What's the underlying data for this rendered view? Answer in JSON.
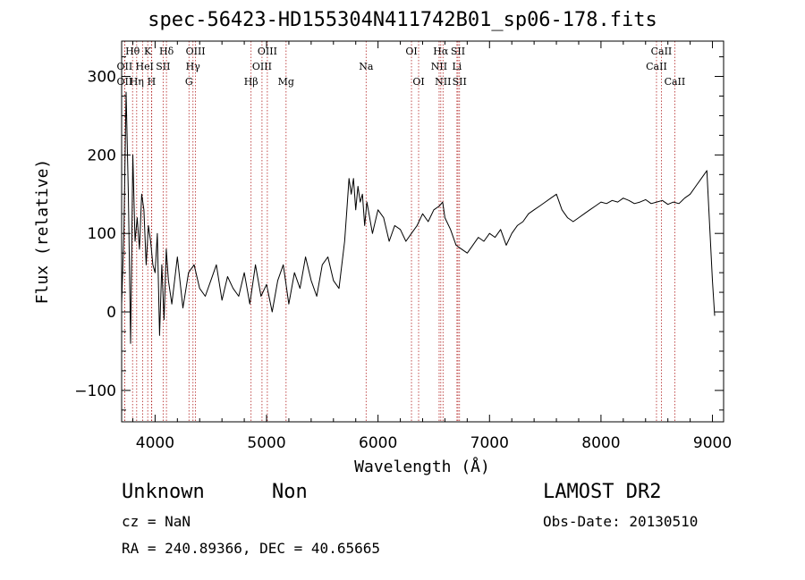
{
  "chart_data": {
    "type": "line",
    "title": "spec-56423-HD155304N411742B01_sp06-178.fits",
    "xlabel": "Wavelength (Å)",
    "ylabel": "Flux (relative)",
    "xlim": [
      3700,
      9100
    ],
    "ylim": [
      -140,
      345
    ],
    "x_ticks": [
      4000,
      5000,
      6000,
      7000,
      8000,
      9000
    ],
    "y_ticks": [
      -100,
      0,
      100,
      200,
      300
    ],
    "grid": false,
    "series": [
      {
        "line_color": "#000000",
        "x": [
          3700,
          3720,
          3740,
          3760,
          3780,
          3800,
          3820,
          3840,
          3860,
          3880,
          3900,
          3920,
          3940,
          3960,
          3980,
          4000,
          4020,
          4040,
          4060,
          4080,
          4100,
          4120,
          4150,
          4200,
          4250,
          4300,
          4350,
          4400,
          4450,
          4500,
          4550,
          4600,
          4650,
          4700,
          4750,
          4800,
          4850,
          4900,
          4950,
          5000,
          5050,
          5100,
          5150,
          5200,
          5250,
          5300,
          5350,
          5400,
          5450,
          5500,
          5550,
          5600,
          5650,
          5700,
          5720,
          5740,
          5760,
          5780,
          5800,
          5820,
          5840,
          5860,
          5880,
          5900,
          5950,
          6000,
          6050,
          6100,
          6150,
          6200,
          6250,
          6300,
          6350,
          6400,
          6450,
          6500,
          6550,
          6580,
          6600,
          6650,
          6700,
          6750,
          6800,
          6850,
          6900,
          6950,
          7000,
          7050,
          7100,
          7150,
          7200,
          7250,
          7300,
          7350,
          7400,
          7450,
          7500,
          7550,
          7600,
          7650,
          7700,
          7750,
          7800,
          7850,
          7900,
          7950,
          8000,
          8050,
          8100,
          8150,
          8200,
          8250,
          8300,
          8350,
          8400,
          8450,
          8500,
          8550,
          8600,
          8650,
          8700,
          8750,
          8800,
          8850,
          8900,
          8950,
          9000,
          9020
        ],
        "y": [
          10,
          100,
          280,
          150,
          -40,
          200,
          90,
          120,
          80,
          150,
          130,
          60,
          110,
          90,
          60,
          50,
          100,
          -30,
          60,
          -10,
          80,
          40,
          10,
          70,
          5,
          50,
          60,
          30,
          20,
          40,
          60,
          15,
          45,
          30,
          20,
          50,
          10,
          60,
          20,
          35,
          0,
          40,
          60,
          10,
          50,
          30,
          70,
          40,
          20,
          60,
          70,
          40,
          30,
          90,
          130,
          170,
          150,
          170,
          130,
          160,
          140,
          150,
          110,
          140,
          100,
          130,
          120,
          90,
          110,
          105,
          90,
          100,
          110,
          125,
          115,
          130,
          135,
          140,
          120,
          105,
          85,
          80,
          75,
          85,
          95,
          90,
          100,
          95,
          105,
          85,
          100,
          110,
          115,
          125,
          130,
          135,
          140,
          145,
          150,
          130,
          120,
          115,
          120,
          125,
          130,
          135,
          140,
          138,
          142,
          140,
          145,
          142,
          138,
          140,
          143,
          138,
          140,
          142,
          137,
          140,
          138,
          145,
          150,
          160,
          170,
          180,
          40,
          -5
        ]
      }
    ],
    "spectral_lines": [
      {
        "label": "Hθ",
        "x": 3798,
        "row": 1
      },
      {
        "label": "K",
        "x": 3934,
        "row": 1
      },
      {
        "label": "Hδ",
        "x": 4102,
        "row": 1
      },
      {
        "label": "OIII",
        "x": 4363,
        "row": 1
      },
      {
        "label": "OIII",
        "x": 5007,
        "row": 1
      },
      {
        "label": "OI",
        "x": 6300,
        "row": 1
      },
      {
        "label": "Hα",
        "x": 6563,
        "row": 1
      },
      {
        "label": "SII",
        "x": 6717,
        "row": 1
      },
      {
        "label": "CaII",
        "x": 8542,
        "row": 1
      },
      {
        "label": "OII",
        "x": 3727,
        "row": 2
      },
      {
        "label": "He",
        "x": 3889,
        "row": 2
      },
      {
        "label": "I",
        "x": 3970,
        "row": 2
      },
      {
        "label": "SII",
        "x": 4072,
        "row": 2
      },
      {
        "label": "Hγ",
        "x": 4340,
        "row": 2
      },
      {
        "label": "OIII",
        "x": 4959,
        "row": 2
      },
      {
        "label": "Na",
        "x": 5893,
        "row": 2
      },
      {
        "label": "NII",
        "x": 6548,
        "row": 2
      },
      {
        "label": "Li",
        "x": 6708,
        "row": 2
      },
      {
        "label": "CaII",
        "x": 8498,
        "row": 2
      },
      {
        "label": "OII",
        "x": 3727,
        "row": 3
      },
      {
        "label": "Hη",
        "x": 3835,
        "row": 3
      },
      {
        "label": "H",
        "x": 3968,
        "row": 3
      },
      {
        "label": "G",
        "x": 4304,
        "row": 3
      },
      {
        "label": "Hβ",
        "x": 4861,
        "row": 3
      },
      {
        "label": "Mg",
        "x": 5175,
        "row": 3
      },
      {
        "label": "OI",
        "x": 6364,
        "row": 3
      },
      {
        "label": "NII",
        "x": 6583,
        "row": 3
      },
      {
        "label": "SII",
        "x": 6731,
        "row": 3
      },
      {
        "label": "CaII",
        "x": 8662,
        "row": 3
      }
    ]
  },
  "info": {
    "object_class": "Unknown",
    "object_subclass": "Non",
    "survey": "LAMOST DR2",
    "cz": "cz = NaN",
    "obs_date": "Obs-Date: 20130510",
    "coords": "RA = 240.89366, DEC =  40.65665"
  }
}
